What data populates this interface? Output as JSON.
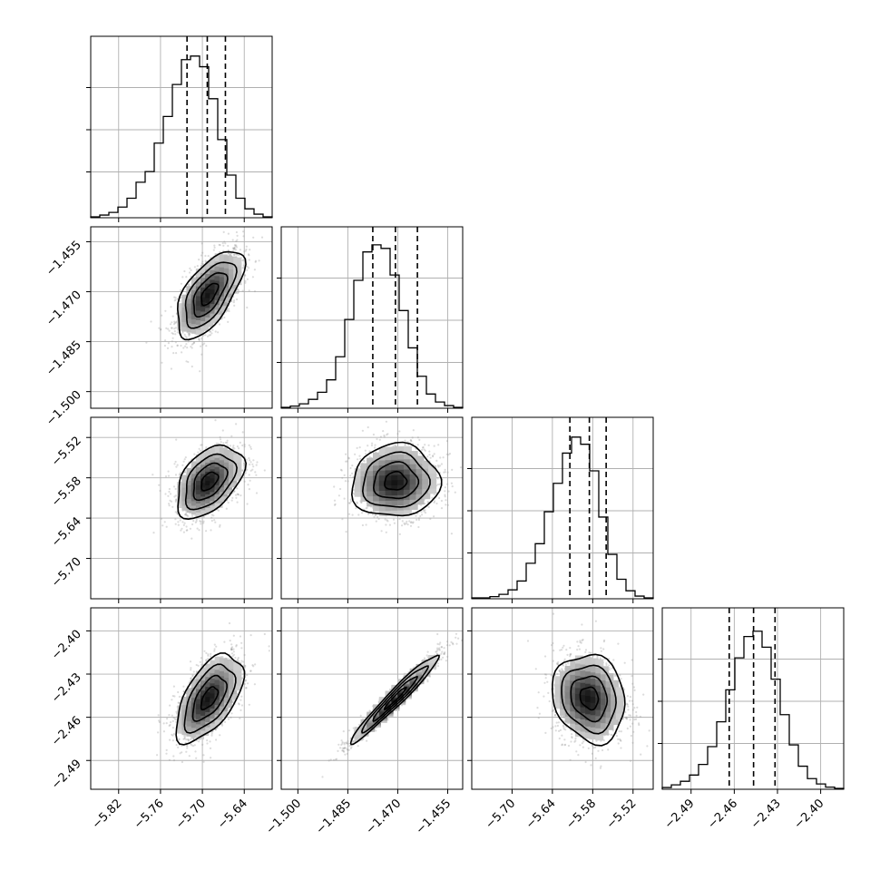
{
  "chart_data": {
    "type": "corner",
    "grid": true,
    "parameters": [
      {
        "range": [
          -5.86,
          -5.6
        ],
        "ticks": [
          -5.82,
          -5.76,
          -5.7,
          -5.64
        ],
        "tick_labels": [
          "−5.82",
          "−5.76",
          "−5.70",
          "−5.64"
        ],
        "quantiles": [
          -5.722,
          -5.693,
          -5.667
        ],
        "mean": -5.69,
        "sd": 0.024,
        "hist": [
          0.005,
          0.015,
          0.03,
          0.06,
          0.11,
          0.2,
          0.26,
          0.42,
          0.57,
          0.75,
          0.89,
          0.91,
          0.85,
          0.67,
          0.44,
          0.24,
          0.11,
          0.05,
          0.02,
          0.005
        ]
      },
      {
        "range": [
          -1.505,
          -1.4505
        ],
        "ticks": [
          -1.5,
          -1.485,
          -1.47,
          -1.455
        ],
        "tick_labels": [
          "−1.500",
          "−1.485",
          "−1.470",
          "−1.455"
        ],
        "quantiles": [
          -1.4775,
          -1.4707,
          -1.4641
        ],
        "mean": -1.4707,
        "sd": 0.0066,
        "hist": [
          0.005,
          0.012,
          0.025,
          0.05,
          0.09,
          0.16,
          0.29,
          0.5,
          0.72,
          0.88,
          0.92,
          0.9,
          0.75,
          0.55,
          0.34,
          0.18,
          0.08,
          0.035,
          0.015,
          0.005
        ]
      },
      {
        "range": [
          -5.76,
          -5.49
        ],
        "ticks": [
          -5.7,
          -5.64,
          -5.58,
          -5.52
        ],
        "tick_labels": [
          "−5.70",
          "−5.64",
          "−5.58",
          "−5.52"
        ],
        "quantiles": [
          -5.614,
          -5.585,
          -5.56
        ],
        "mean": -5.585,
        "sd": 0.027,
        "hist": [
          0.005,
          0.005,
          0.012,
          0.025,
          0.05,
          0.1,
          0.2,
          0.31,
          0.49,
          0.65,
          0.82,
          0.91,
          0.87,
          0.72,
          0.46,
          0.25,
          0.11,
          0.045,
          0.015,
          0.005
        ]
      },
      {
        "range": [
          -2.51,
          -2.384
        ],
        "ticks": [
          -2.49,
          -2.46,
          -2.43,
          -2.4
        ],
        "tick_labels": [
          "−2.49",
          "−2.46",
          "−2.43",
          "−2.40"
        ],
        "quantiles": [
          -2.4635,
          -2.4466,
          -2.4317
        ],
        "mean": -2.4466,
        "sd": 0.0153,
        "hist": [
          0.01,
          0.025,
          0.045,
          0.08,
          0.14,
          0.24,
          0.38,
          0.56,
          0.74,
          0.86,
          0.89,
          0.8,
          0.62,
          0.42,
          0.25,
          0.13,
          0.06,
          0.03,
          0.012,
          0.005
        ]
      }
    ],
    "pairs": [
      {
        "x": 0,
        "y": 1,
        "rho": 0.62
      },
      {
        "x": 0,
        "y": 2,
        "rho": 0.45
      },
      {
        "x": 1,
        "y": 2,
        "rho": 0.05
      },
      {
        "x": 0,
        "y": 3,
        "rho": 0.58
      },
      {
        "x": 1,
        "y": 3,
        "rho": 0.97
      },
      {
        "x": 2,
        "y": 3,
        "rho": -0.15
      }
    ],
    "contour_levels_sigma": [
      0.5,
      1.0,
      1.5,
      2.0
    ],
    "colors": {
      "line": "#000000",
      "grid": "#b0b0b0",
      "density_max": "#000000",
      "density_min": "#ffffff"
    }
  }
}
